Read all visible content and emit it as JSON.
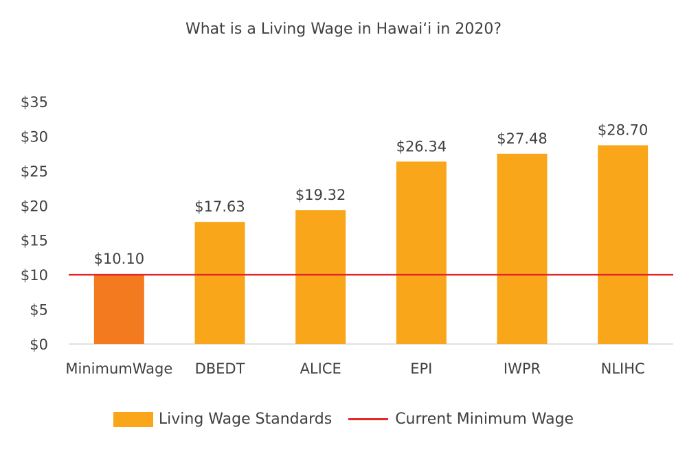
{
  "chart_data": {
    "type": "bar",
    "title": "What is a Living Wage in Hawai‘i in 2020?",
    "categories": [
      "MinimumWage",
      "DBEDT",
      "ALICE",
      "EPI",
      "IWPR",
      "NLIHC"
    ],
    "values": [
      10.1,
      17.63,
      19.32,
      26.34,
      27.48,
      28.7
    ],
    "data_labels": [
      "$10.10",
      "$17.63",
      "$19.32",
      "$26.34",
      "$27.48",
      "$28.70"
    ],
    "bar_colors": [
      "#F47A20",
      "#F9A61A",
      "#F9A61A",
      "#F9A61A",
      "#F9A61A",
      "#F9A61A"
    ],
    "y_ticks": [
      0,
      5,
      10,
      15,
      20,
      25,
      30,
      35
    ],
    "y_tick_labels": [
      "$0",
      "$5",
      "$10",
      "$15",
      "$20",
      "$25",
      "$30",
      "$35"
    ],
    "ylim": [
      0,
      35
    ],
    "reference_line": {
      "name": "Current Minimum Wage",
      "value": 10,
      "color": "#E4262B"
    },
    "xlabel": "",
    "ylabel": "",
    "grid": false,
    "legend": {
      "position": "bottom",
      "entries": [
        {
          "label": "Living Wage Standards",
          "type": "bar",
          "color": "#F9A61A"
        },
        {
          "label": "Current Minimum Wage",
          "type": "line",
          "color": "#E4262B"
        }
      ]
    }
  }
}
